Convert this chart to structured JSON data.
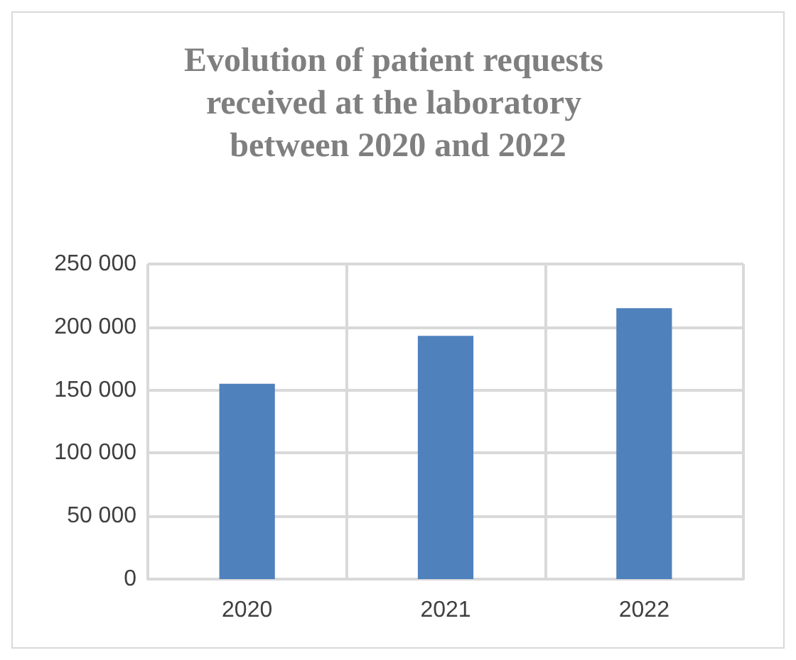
{
  "chart_data": {
    "type": "bar",
    "title": "Evolution of patient requests received at the laboratory between 2020 and 2022",
    "categories": [
      "2020",
      "2021",
      "2022"
    ],
    "values": [
      155000,
      193000,
      215000
    ],
    "color": "#4f81bd",
    "ylim": [
      0,
      250000
    ],
    "yticks": [
      0,
      {
        "value": 50000,
        "label": "50 000"
      },
      {
        "value": 100000,
        "label": "100 000"
      },
      {
        "value": 150000,
        "label": "150 000"
      },
      {
        "value": 200000,
        "label": "200 000"
      },
      {
        "value": 250000,
        "label": "250 000"
      }
    ],
    "grid": true
  }
}
